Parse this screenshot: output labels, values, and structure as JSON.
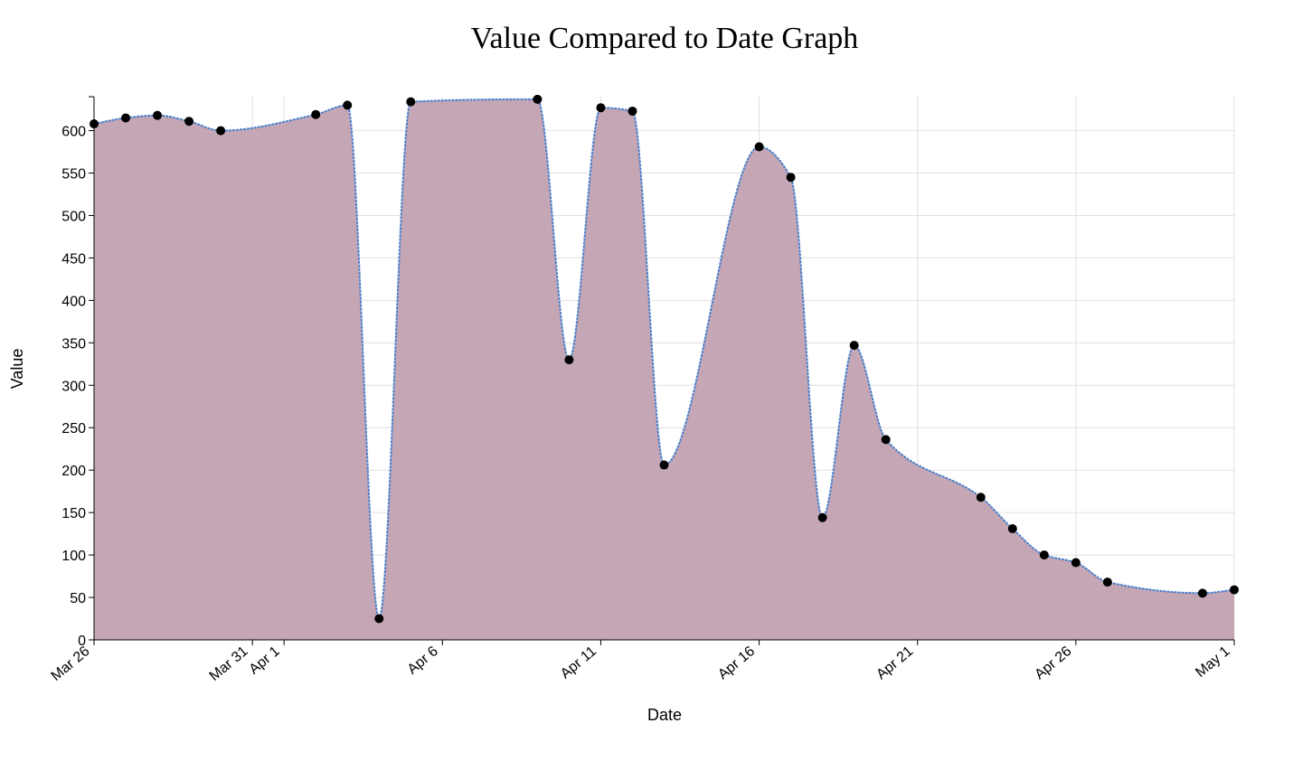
{
  "chart_data": {
    "type": "area",
    "title": "Value Compared to Date Graph",
    "xlabel": "Date",
    "ylabel": "Value",
    "ylim": [
      0,
      640
    ],
    "xlim": [
      "2017-03-26",
      "2017-05-01"
    ],
    "y_ticks": [
      0,
      50,
      100,
      150,
      200,
      250,
      300,
      350,
      400,
      450,
      500,
      550,
      600
    ],
    "x_ticks": [
      {
        "date": "2017-03-26",
        "label": "Mar 26"
      },
      {
        "date": "2017-03-31",
        "label": "Mar 31"
      },
      {
        "date": "2017-04-01",
        "label": "Apr 1"
      },
      {
        "date": "2017-04-06",
        "label": "Apr 6"
      },
      {
        "date": "2017-04-11",
        "label": "Apr 11"
      },
      {
        "date": "2017-04-16",
        "label": "Apr 16"
      },
      {
        "date": "2017-04-21",
        "label": "Apr 21"
      },
      {
        "date": "2017-04-26",
        "label": "Apr 26"
      },
      {
        "date": "2017-05-01",
        "label": "May 1"
      }
    ],
    "grid": true,
    "colors": {
      "fill": "#c5a6b5",
      "line": "#4a7fc8",
      "point": "#000000"
    },
    "points": [
      {
        "date": "2017-03-26",
        "value": 608
      },
      {
        "date": "2017-03-27",
        "value": 615
      },
      {
        "date": "2017-03-28",
        "value": 618
      },
      {
        "date": "2017-03-29",
        "value": 611
      },
      {
        "date": "2017-03-30",
        "value": 600
      },
      {
        "date": "2017-04-02",
        "value": 619
      },
      {
        "date": "2017-04-03",
        "value": 630
      },
      {
        "date": "2017-04-04",
        "value": 25
      },
      {
        "date": "2017-04-05",
        "value": 634
      },
      {
        "date": "2017-04-09",
        "value": 637
      },
      {
        "date": "2017-04-10",
        "value": 330
      },
      {
        "date": "2017-04-11",
        "value": 627
      },
      {
        "date": "2017-04-12",
        "value": 623
      },
      {
        "date": "2017-04-13",
        "value": 206
      },
      {
        "date": "2017-04-16",
        "value": 581
      },
      {
        "date": "2017-04-17",
        "value": 545
      },
      {
        "date": "2017-04-18",
        "value": 144
      },
      {
        "date": "2017-04-19",
        "value": 347
      },
      {
        "date": "2017-04-20",
        "value": 236
      },
      {
        "date": "2017-04-23",
        "value": 168
      },
      {
        "date": "2017-04-24",
        "value": 131
      },
      {
        "date": "2017-04-25",
        "value": 100
      },
      {
        "date": "2017-04-26",
        "value": 91
      },
      {
        "date": "2017-04-27",
        "value": 68
      },
      {
        "date": "2017-04-30",
        "value": 55
      },
      {
        "date": "2017-05-01",
        "value": 59
      }
    ]
  }
}
